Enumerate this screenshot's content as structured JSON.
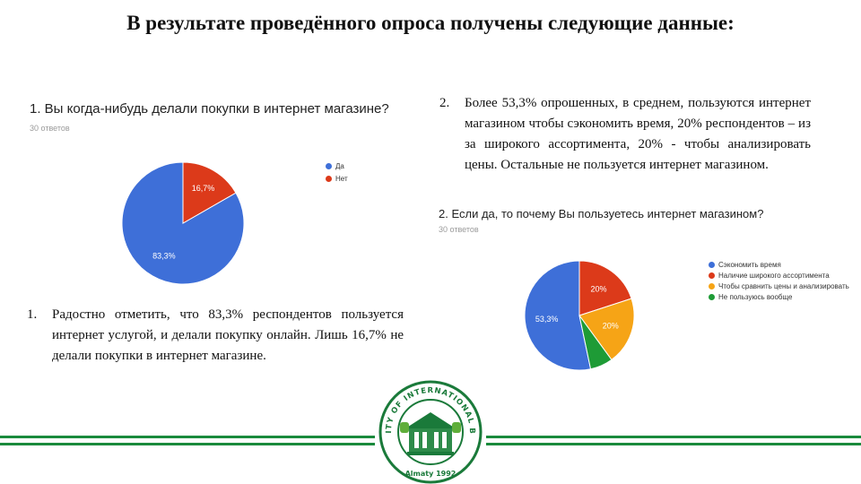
{
  "slide": {
    "title": "В результате проведённого опроса получены следующие данные:"
  },
  "survey1": {
    "question": "1. Вы когда-нибудь делали покупки в интернет магазине?",
    "responses_label": "30 ответов",
    "legend": [
      {
        "label": "Да",
        "color": "#3e6fd8"
      },
      {
        "label": "Нет",
        "color": "#dc3a1a"
      }
    ]
  },
  "survey2": {
    "question": "2. Если да, то почему Вы пользуетесь интернет магазином?",
    "responses_label": "30 ответов",
    "legend": [
      {
        "label": "Сэкономить время",
        "color": "#3e6fd8"
      },
      {
        "label": "Наличие широкого ассортимента",
        "color": "#dc3a1a"
      },
      {
        "label": "Чтобы сравнить цены и анализировать",
        "color": "#f6a416"
      },
      {
        "label": "Не пользуюсь вообще",
        "color": "#1e9b36"
      }
    ]
  },
  "notes": {
    "item1_num": "1.",
    "item1_text": "Радостно отметить, что 83,3% респондентов пользуется интернет услугой, и делали покупку онлайн. Лишь 16,7% не делали покупки в интернет магазине.",
    "item2_num": "2.",
    "item2_text": "Более 53,3% опрошенных, в среднем, пользуются интернет магазином чтобы сэкономить время, 20% респондентов – из за широкого ассортимента, 20% - чтобы анализировать цены. Остальные не пользуется интернет магазином."
  },
  "chart_data": [
    {
      "type": "pie",
      "title": "1. Вы когда-нибудь делали покупки в интернет магазине?",
      "categories": [
        "Да",
        "Нет"
      ],
      "values": [
        83.3,
        16.7
      ],
      "data_labels": [
        "83,3%",
        "16,7%"
      ],
      "colors": [
        "#3e6fd8",
        "#dc3a1a"
      ],
      "legend_position": "right"
    },
    {
      "type": "pie",
      "title": "2. Если да, то почему Вы пользуетесь интернет магазином?",
      "categories": [
        "Сэкономить время",
        "Наличие широкого ассортимента",
        "Чтобы сравнить цены и анализировать",
        "Не пользуюсь вообще"
      ],
      "values": [
        53.3,
        20,
        20,
        6.7
      ],
      "data_labels": [
        "53,3%",
        "20%",
        "20%",
        ""
      ],
      "colors": [
        "#3e6fd8",
        "#dc3a1a",
        "#f6a416",
        "#1e9b36"
      ],
      "legend_position": "right"
    }
  ],
  "seal": {
    "ring_text": "UNIVERSITY OF INTERNATIONAL BUSINESS",
    "bottom_text": "Almaty 1992"
  },
  "colors": {
    "footer_green": "#1a8a3c",
    "seal_green": "#1a7a3a"
  }
}
